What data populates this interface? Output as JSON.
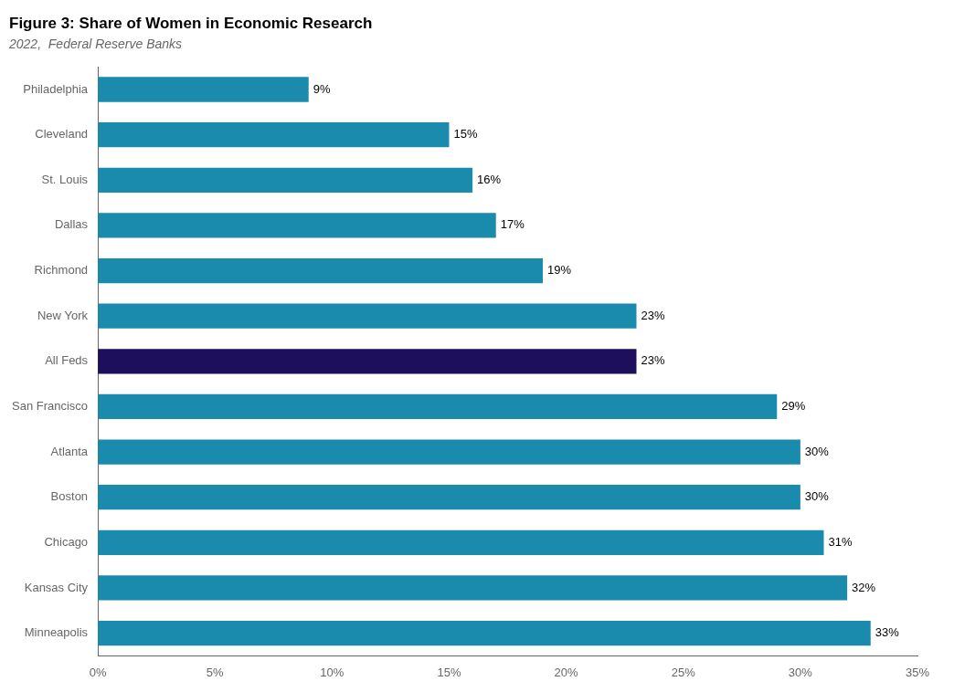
{
  "chart_data": {
    "type": "bar",
    "orientation": "horizontal",
    "title": "Figure 3: Share of Women in Economic Research",
    "subtitle": "2022,  Federal Reserve Banks",
    "categories": [
      "Philadelphia",
      "Cleveland",
      "St. Louis",
      "Dallas",
      "Richmond",
      "New York",
      "All Feds",
      "San Francisco",
      "Atlanta",
      "Boston",
      "Chicago",
      "Kansas City",
      "Minneapolis"
    ],
    "values": [
      9,
      15,
      16,
      17,
      19,
      23,
      23,
      29,
      30,
      30,
      31,
      32,
      33
    ],
    "value_labels": [
      "9%",
      "15%",
      "16%",
      "17%",
      "19%",
      "23%",
      "23%",
      "29%",
      "30%",
      "30%",
      "31%",
      "32%",
      "33%"
    ],
    "data_labels": true,
    "colors": [
      "#1a8aad",
      "#1a8aad",
      "#1a8aad",
      "#1a8aad",
      "#1a8aad",
      "#1a8aad",
      "#1e0f5c",
      "#1a8aad",
      "#1a8aad",
      "#1a8aad",
      "#1a8aad",
      "#1a8aad",
      "#1a8aad"
    ],
    "xlim": [
      0,
      35
    ],
    "xticks": [
      {
        "value": 0,
        "label": "0%"
      },
      {
        "value": 5,
        "label": "5%"
      },
      {
        "value": 10,
        "label": "10%"
      },
      {
        "value": 15,
        "label": "15%"
      },
      {
        "value": 20,
        "label": "20%"
      },
      {
        "value": 25,
        "label": "25%"
      },
      {
        "value": 30,
        "label": "30%"
      },
      {
        "value": 35,
        "label": "35%"
      }
    ],
    "grid": false
  }
}
